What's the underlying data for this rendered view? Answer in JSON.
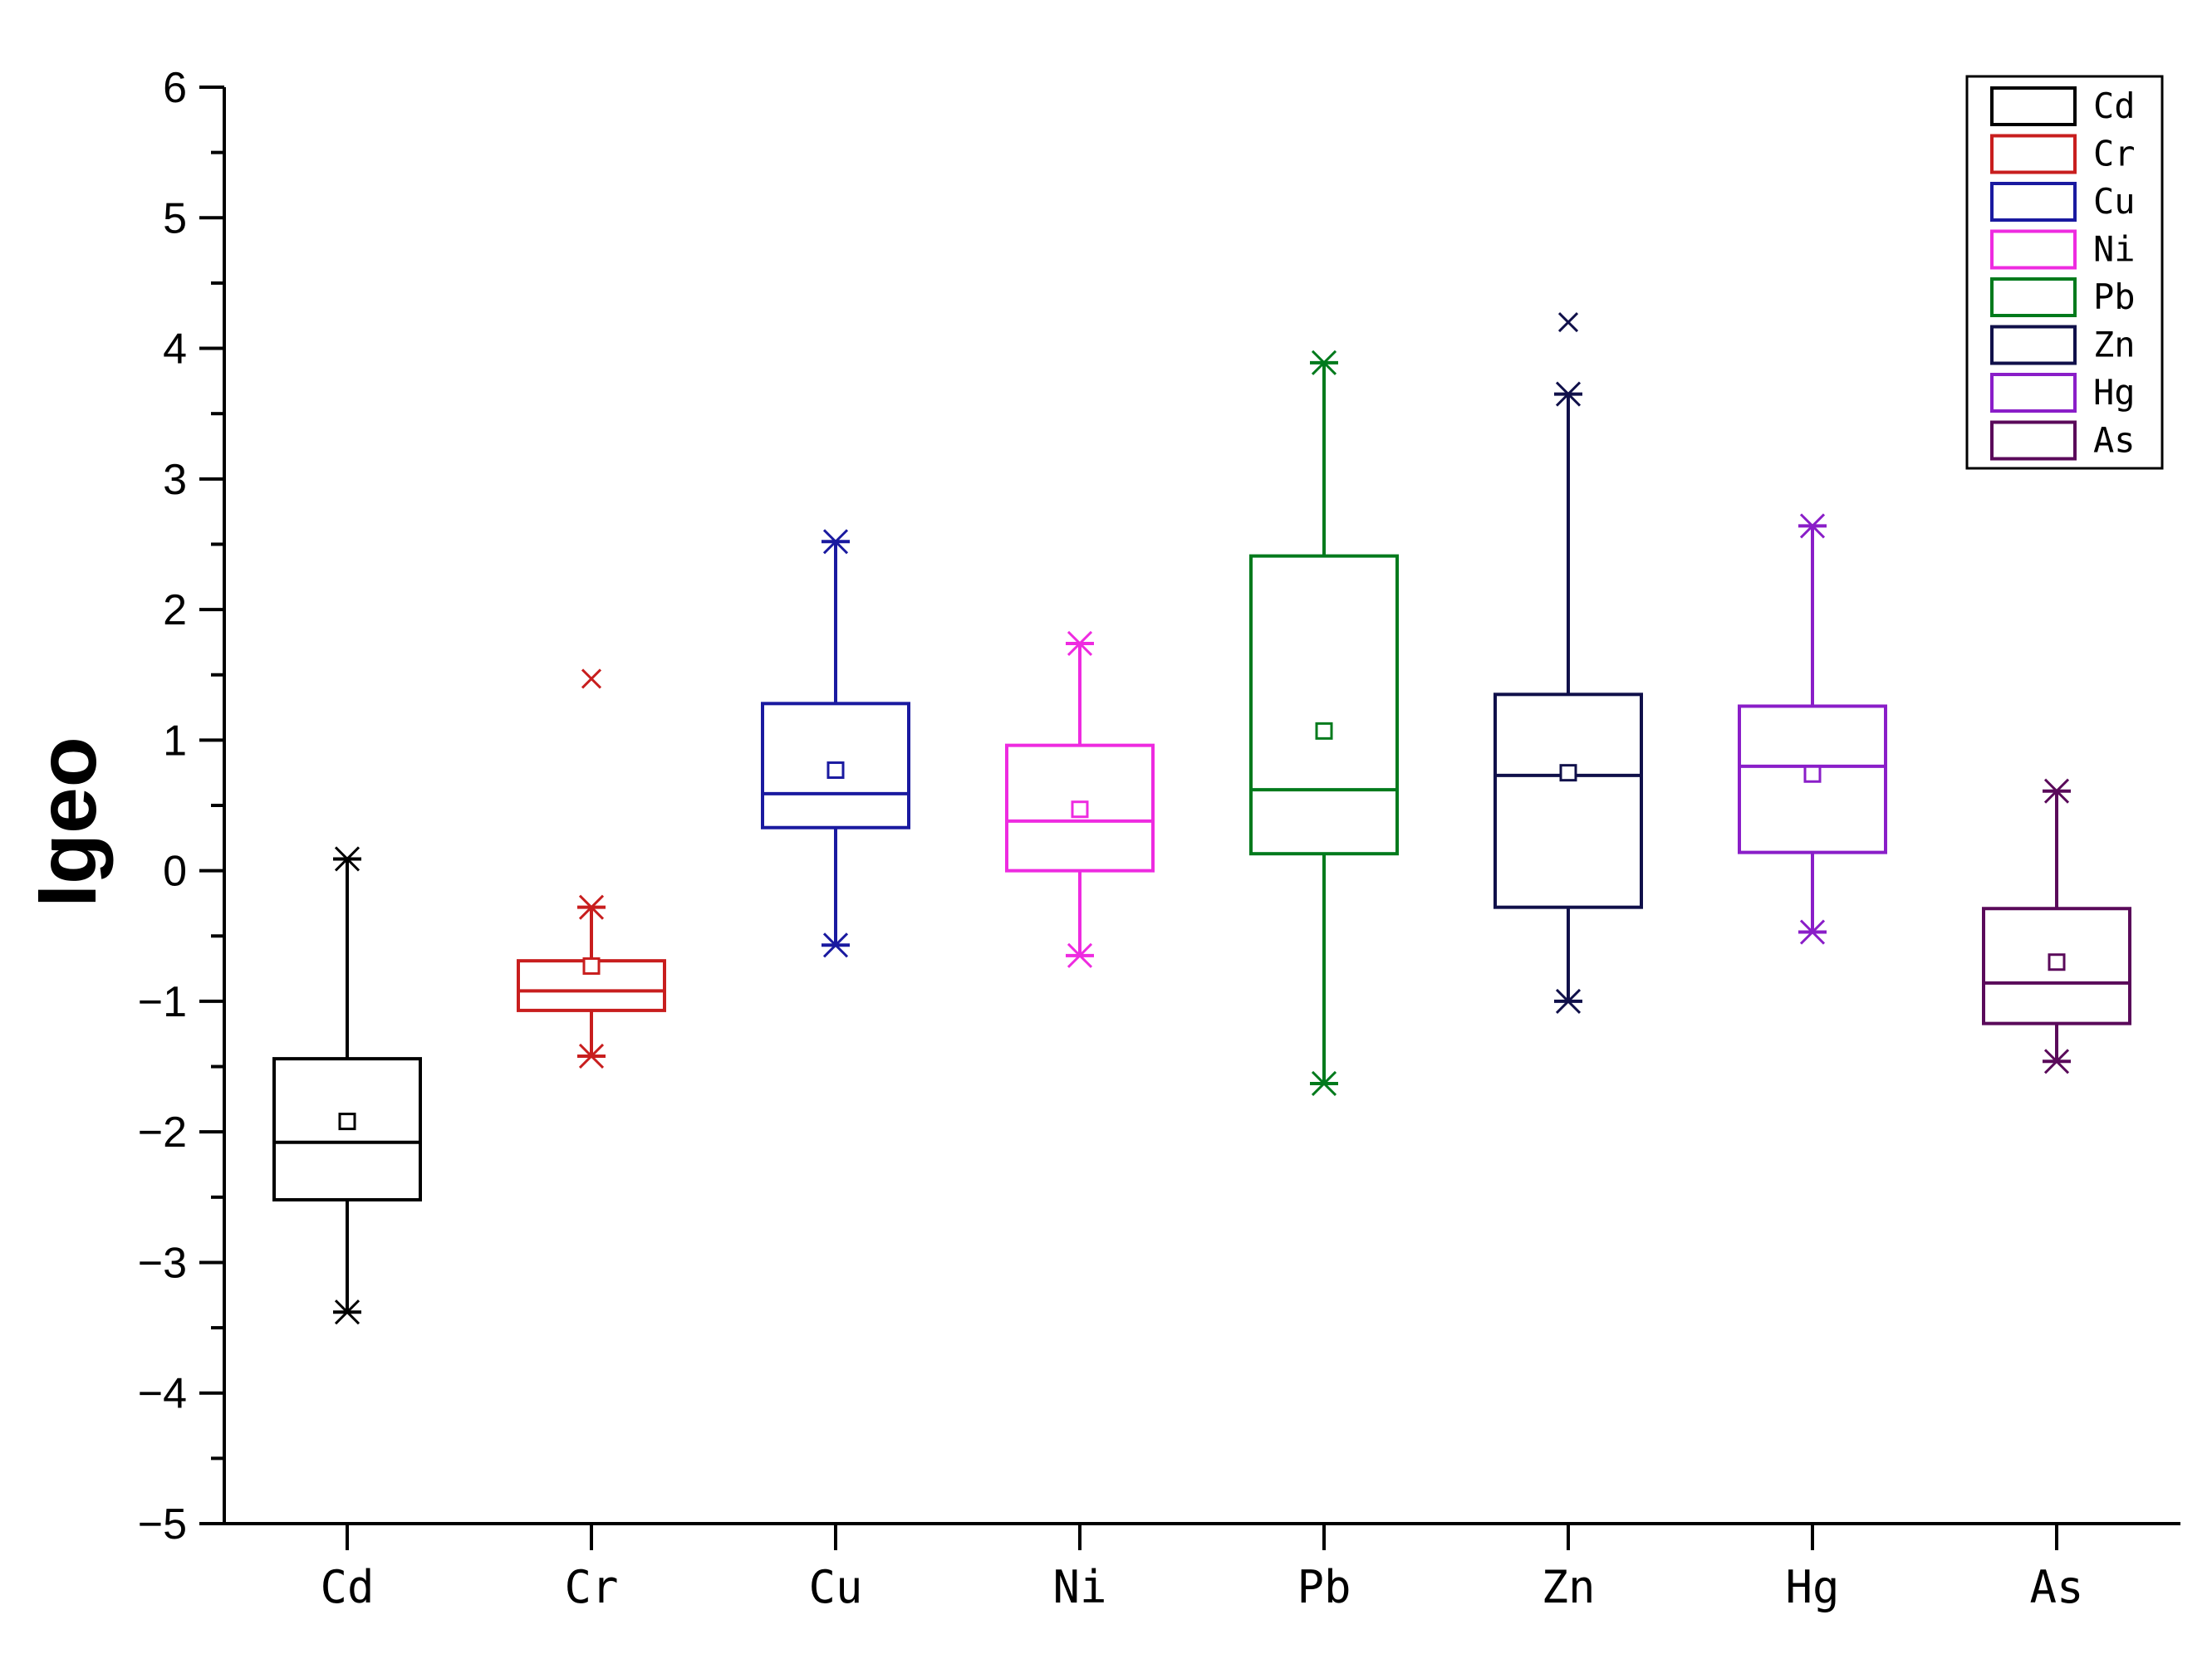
{
  "chart_data": {
    "type": "box",
    "ylabel": "Igeo",
    "xlabel": "",
    "ylim": [
      -5,
      6
    ],
    "yticks": [
      6,
      5,
      4,
      3,
      2,
      1,
      0,
      -1,
      -2,
      -3,
      -4,
      -5
    ],
    "ytick_labels": [
      "6",
      "5",
      "4",
      "3",
      "2",
      "1",
      "0",
      "−1",
      "−2",
      "−3",
      "−4",
      "−5"
    ],
    "legend_position": "top-right",
    "series": [
      {
        "name": "Cd",
        "color": "#000000",
        "q1": -2.52,
        "median": -2.08,
        "q3": -1.44,
        "mean": -1.92,
        "whisker_low": -3.38,
        "whisker_high": 0.09,
        "outliers": []
      },
      {
        "name": "Cr",
        "color": "#c81e1e",
        "q1": -1.07,
        "median": -0.92,
        "q3": -0.69,
        "mean": -0.73,
        "whisker_low": -1.42,
        "whisker_high": -0.28,
        "outliers": [
          1.47
        ]
      },
      {
        "name": "Cu",
        "color": "#1a1aa0",
        "q1": 0.33,
        "median": 0.59,
        "q3": 1.28,
        "mean": 0.77,
        "whisker_low": -0.57,
        "whisker_high": 2.52,
        "outliers": []
      },
      {
        "name": "Ni",
        "color": "#ee2be0",
        "q1": 0.0,
        "median": 0.38,
        "q3": 0.96,
        "mean": 0.47,
        "whisker_low": -0.65,
        "whisker_high": 1.74,
        "outliers": []
      },
      {
        "name": "Pb",
        "color": "#007a1c",
        "q1": 0.13,
        "median": 0.62,
        "q3": 2.41,
        "mean": 1.07,
        "whisker_low": -1.63,
        "whisker_high": 3.89,
        "outliers": []
      },
      {
        "name": "Zn",
        "color": "#10104a",
        "q1": -0.28,
        "median": 0.73,
        "q3": 1.35,
        "mean": 0.75,
        "whisker_low": -1.0,
        "whisker_high": 3.65,
        "outliers": [
          4.2
        ]
      },
      {
        "name": "Hg",
        "color": "#8a1ec8",
        "q1": 0.14,
        "median": 0.8,
        "q3": 1.26,
        "mean": 0.74,
        "whisker_low": -0.47,
        "whisker_high": 2.64,
        "outliers": []
      },
      {
        "name": "As",
        "color": "#5a0a5a",
        "q1": -1.17,
        "median": -0.86,
        "q3": -0.29,
        "mean": -0.7,
        "whisker_low": -1.46,
        "whisker_high": 0.61,
        "outliers": []
      }
    ]
  }
}
